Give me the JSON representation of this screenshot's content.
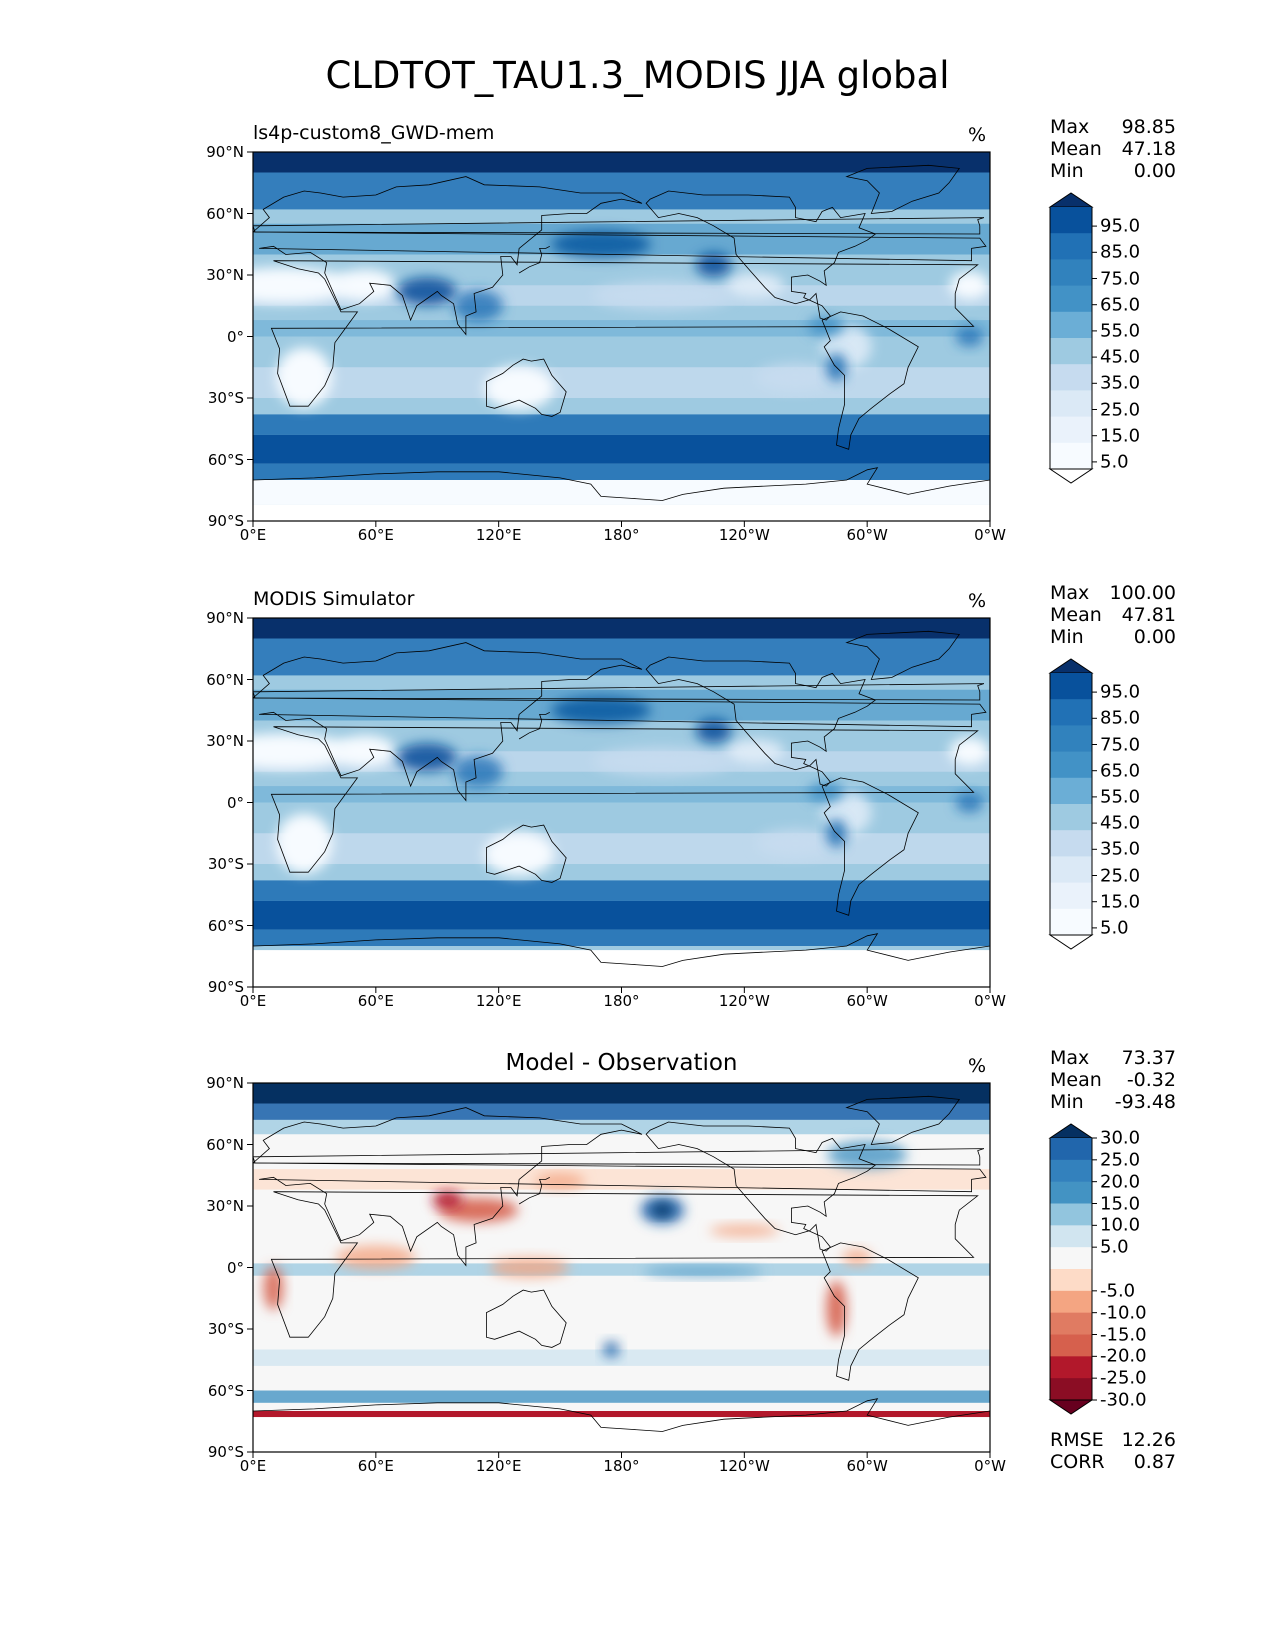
{
  "title": "CLDTOT_TAU1.3_MODIS JJA global",
  "lat_ticks": [
    "90°N",
    "60°N",
    "30°N",
    "0°",
    "30°S",
    "60°S",
    "90°S"
  ],
  "lon_ticks": [
    "0°E",
    "60°E",
    "120°E",
    "180°",
    "120°W",
    "60°W",
    "0°W"
  ],
  "colors": {
    "blues": [
      "#f7fbff",
      "#deebf7",
      "#c6dbef",
      "#9ecae1",
      "#6baed6",
      "#4292c6",
      "#2171b5",
      "#08519c",
      "#08306b"
    ],
    "diverging": [
      "#67001f",
      "#b2182b",
      "#d6604d",
      "#f4a582",
      "#fddbc7",
      "#f7f7f7",
      "#d1e5f0",
      "#92c5de",
      "#4393c3",
      "#2166ac",
      "#053061"
    ],
    "land_outline": "#000000"
  },
  "chart_data": [
    {
      "type": "heatmap",
      "title": "ls4p-custom8_GWD-mem",
      "units": "%",
      "stats": {
        "max_label": "Max",
        "max": "98.85",
        "mean_label": "Mean",
        "mean": "47.18",
        "min_label": "Min",
        "min": "0.00"
      },
      "colorbar": {
        "levels": [
          "95.0",
          "85.0",
          "75.0",
          "65.0",
          "55.0",
          "45.0",
          "35.0",
          "25.0",
          "15.0",
          "5.0"
        ],
        "extend": "both"
      },
      "xlim": [
        0,
        360
      ],
      "ylim": [
        -90,
        90
      ]
    },
    {
      "type": "heatmap",
      "title": "MODIS Simulator",
      "units": "%",
      "stats": {
        "max_label": "Max",
        "max": "100.00",
        "mean_label": "Mean",
        "mean": "47.81",
        "min_label": "Min",
        "min": "0.00"
      },
      "colorbar": {
        "levels": [
          "95.0",
          "85.0",
          "75.0",
          "65.0",
          "55.0",
          "45.0",
          "35.0",
          "25.0",
          "15.0",
          "5.0"
        ],
        "extend": "both"
      },
      "xlim": [
        0,
        360
      ],
      "ylim": [
        -90,
        90
      ]
    },
    {
      "type": "heatmap",
      "title": "Model - Observation",
      "units": "%",
      "stats": {
        "max_label": "Max",
        "max": "73.37",
        "mean_label": "Mean",
        "mean": "-0.32",
        "min_label": "Min",
        "min": "-93.48"
      },
      "colorbar": {
        "levels": [
          "30.0",
          "25.0",
          "20.0",
          "15.0",
          "10.0",
          "5.0",
          "-5.0",
          "-10.0",
          "-15.0",
          "-20.0",
          "-25.0",
          "-30.0"
        ],
        "extend": "both"
      },
      "metrics": {
        "rmse_label": "RMSE",
        "rmse": "12.26",
        "corr_label": "CORR",
        "corr": "0.87"
      },
      "xlim": [
        0,
        360
      ],
      "ylim": [
        -90,
        90
      ]
    }
  ]
}
